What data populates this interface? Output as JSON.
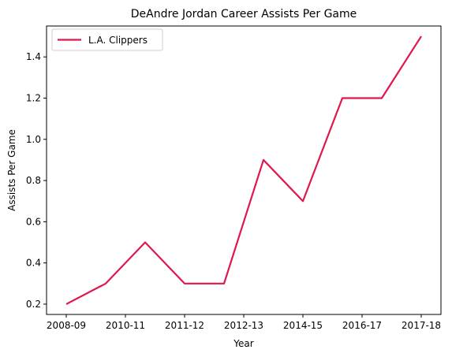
{
  "chart_data": {
    "type": "line",
    "title": "DeAndre Jordan Career Assists Per Game",
    "xlabel": "Year",
    "ylabel": "Assists Per Game",
    "x_tick_labels": [
      "2008-09",
      "2010-11",
      "2011-12",
      "2012-13",
      "2014-15",
      "2016-17",
      "2017-18"
    ],
    "y_ticks": [
      0.2,
      0.4,
      0.6,
      0.8,
      1.0,
      1.2,
      1.4
    ],
    "y_tick_labels": [
      "0.2",
      "0.4",
      "0.6",
      "0.8",
      "1.0",
      "1.2",
      "1.4"
    ],
    "ylim": [
      0.15,
      1.55
    ],
    "series": [
      {
        "name": "L.A. Clippers",
        "color": "#e0174c",
        "values": [
          0.2,
          0.3,
          0.5,
          0.3,
          0.3,
          0.9,
          0.7,
          1.2,
          1.2,
          1.5
        ]
      }
    ],
    "legend_position": "top-left",
    "grid": false
  }
}
